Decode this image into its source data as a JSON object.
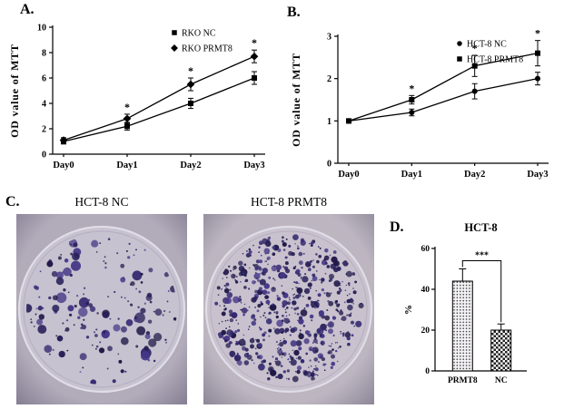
{
  "panels": {
    "a_label": "A.",
    "b_label": "B.",
    "c_label": "C.",
    "d_label": "D."
  },
  "chart_data": [
    {
      "id": "A",
      "type": "line",
      "ylabel": "OD value of MTT",
      "categories": [
        "Day0",
        "Day1",
        "Day2",
        "Day3"
      ],
      "ylim": [
        0,
        10
      ],
      "yticks": [
        0,
        2,
        4,
        6,
        8,
        10
      ],
      "series": [
        {
          "name": "RKO NC",
          "marker": "square",
          "values": [
            1.0,
            2.2,
            4.0,
            6.0
          ],
          "errors": [
            0.2,
            0.3,
            0.4,
            0.5
          ]
        },
        {
          "name": "RKO PRMT8",
          "marker": "diamond",
          "values": [
            1.1,
            2.8,
            5.5,
            7.7
          ],
          "errors": [
            0.2,
            0.35,
            0.5,
            0.5
          ]
        }
      ],
      "sig": {
        "symbol": "*",
        "series": 1,
        "indices": [
          1,
          2,
          3
        ]
      },
      "legend_position": "top-right",
      "grid": false
    },
    {
      "id": "B",
      "type": "line",
      "ylabel": "OD value of MTT",
      "categories": [
        "Day0",
        "Day1",
        "Day2",
        "Day3"
      ],
      "ylim": [
        0,
        3
      ],
      "yticks": [
        0,
        1,
        2,
        3
      ],
      "series": [
        {
          "name": "HCT-8 NC",
          "marker": "circle",
          "values": [
            1.0,
            1.2,
            1.7,
            2.0
          ],
          "errors": [
            0.05,
            0.08,
            0.18,
            0.15
          ]
        },
        {
          "name": "HCT-8 PRMT8",
          "marker": "square",
          "values": [
            1.0,
            1.5,
            2.3,
            2.6
          ],
          "errors": [
            0.05,
            0.1,
            0.25,
            0.3
          ]
        }
      ],
      "sig": {
        "symbol": "*",
        "series": 1,
        "indices": [
          1,
          2,
          3
        ]
      },
      "legend_position": "top-right",
      "grid": false
    },
    {
      "id": "D",
      "type": "bar",
      "title": "HCT-8",
      "ylabel": "%",
      "categories": [
        "PRMT8",
        "NC"
      ],
      "values": [
        44,
        20
      ],
      "errors": [
        6,
        3
      ],
      "ylim": [
        0,
        60
      ],
      "yticks": [
        0,
        20,
        40,
        60
      ],
      "bar_patterns": [
        "stipple",
        "check"
      ],
      "sig": {
        "symbol": "***",
        "between": [
          0,
          1
        ]
      },
      "grid": false
    }
  ],
  "panel_c": {
    "plates": [
      {
        "title": "HCT-8 NC",
        "colony_density": "low",
        "approx_colonies": 170
      },
      {
        "title": "HCT-8 PRMT8",
        "colony_density": "high",
        "approx_colonies": 620
      }
    ],
    "colors": {
      "photo_bg": [
        "#b1abba",
        "#bdb6c1"
      ],
      "dish_fill": [
        "#c6c2cf",
        "#c9c2ce"
      ],
      "colony_palette": [
        "#271f58",
        "#352a70",
        "#453787",
        "#1f1947"
      ]
    }
  }
}
